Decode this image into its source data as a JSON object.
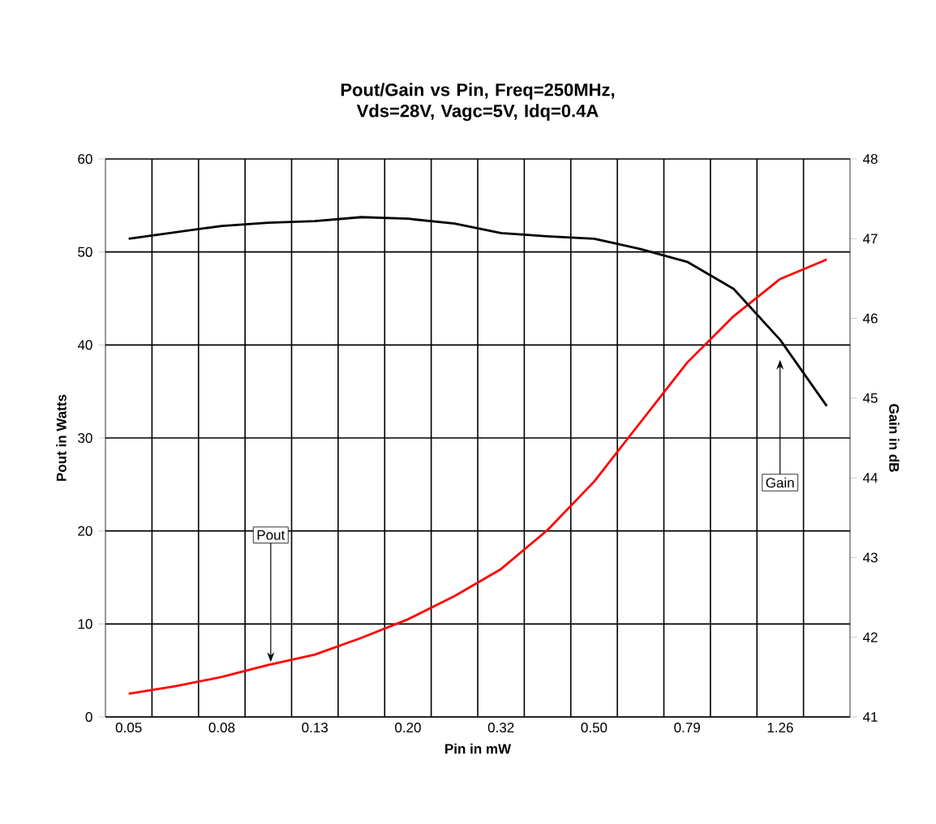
{
  "chart_data": {
    "type": "line",
    "title": "Pout/Gain vs Pin, Freq=250MHz, Vds=28V, Vagc=5V, Idq=0.4A",
    "xlabel": "Pin in mW",
    "ylabel": "Pout in Watts",
    "y2label": "Gain in dB",
    "categories": [
      "0.05",
      null,
      "0.08",
      null,
      "0.13",
      null,
      "0.20",
      null,
      "0.32",
      null,
      "0.50",
      null,
      "0.79",
      null,
      "1.26",
      null
    ],
    "series": [
      {
        "color": "#ff0000",
        "values": [
          2.5,
          3.3,
          4.3,
          5.6,
          6.7,
          8.5,
          10.5,
          13.0,
          15.9,
          20.1,
          25.3,
          31.7,
          38.1,
          43.1,
          47.1,
          49.2
        ]
      },
      {
        "color": "#000000",
        "axis": "y2",
        "values": [
          47.0,
          47.08,
          47.16,
          47.2,
          47.22,
          47.27,
          47.25,
          47.19,
          47.07,
          47.03,
          47.0,
          46.87,
          46.71,
          46.37,
          45.73,
          44.9
        ]
      }
    ],
    "ylim": [
      0,
      60
    ],
    "yticks": [
      0,
      10,
      20,
      30,
      40,
      50,
      60
    ],
    "y2lim": [
      41,
      48
    ],
    "y2ticks": [
      41,
      42,
      43,
      44,
      45,
      46,
      47,
      48
    ],
    "grid": true,
    "marker": "none",
    "line_style": "solid",
    "annotations": [
      {
        "text": "Pout",
        "y": 5.9
      },
      "Gain"
    ]
  }
}
